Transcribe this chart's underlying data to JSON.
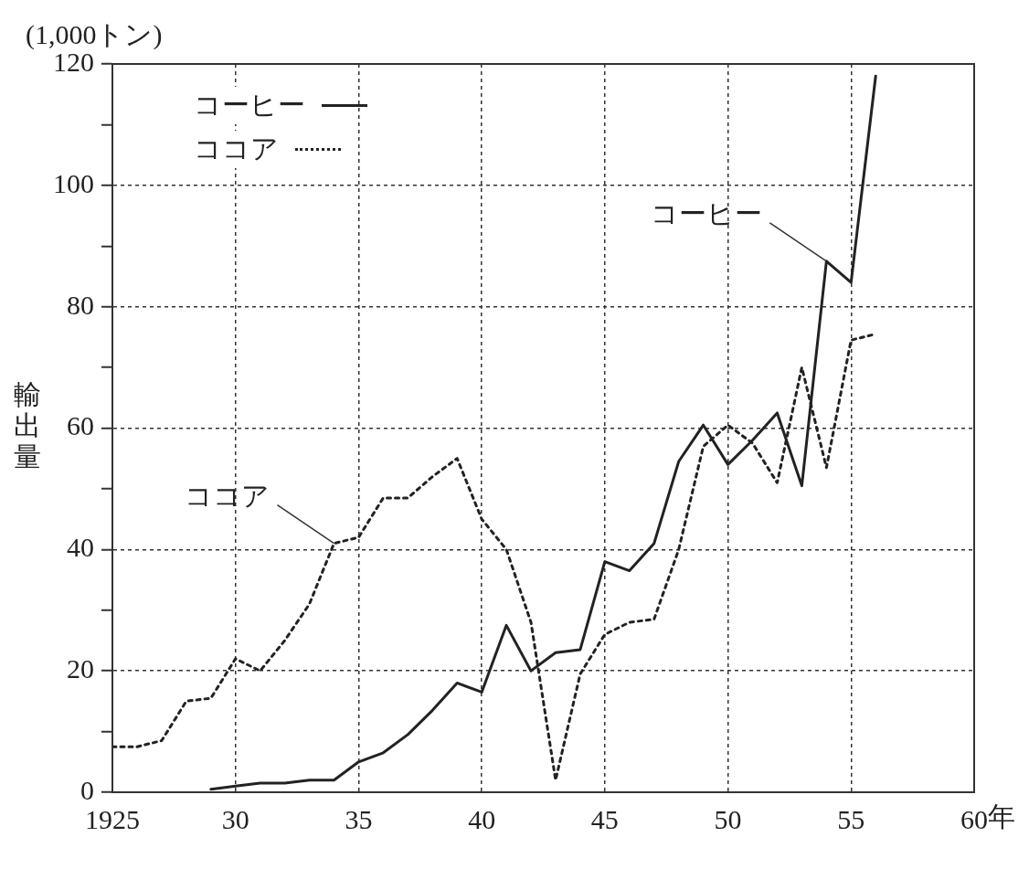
{
  "chart_data": {
    "type": "line",
    "ylabel": "輸出量",
    "annotations": [
      "(1,000トン)",
      {
        "text": "コーヒー",
        "x": 1954,
        "y": 87.5
      },
      {
        "text": "ココア",
        "x": 1934,
        "y": 41
      }
    ],
    "series": [
      {
        "name": "コーヒー",
        "color": "#222222",
        "line_style": "solid",
        "x": [
          1929,
          1930,
          1931,
          1932,
          1933,
          1934,
          1935,
          1936,
          1937,
          1938,
          1939,
          1940,
          1941,
          1942,
          1943,
          1944,
          1945,
          1946,
          1947,
          1948,
          1949,
          1950,
          1951,
          1952,
          1953,
          1954,
          1955,
          1956
        ],
        "values": [
          0.5,
          1,
          1.5,
          1.5,
          2,
          2,
          5,
          6.5,
          9.5,
          13.5,
          18,
          16.5,
          27.5,
          20,
          23,
          23.5,
          38,
          36.5,
          41,
          54.5,
          60.5,
          54,
          58,
          62.5,
          50.5,
          87.5,
          84,
          118
        ]
      },
      {
        "name": "ココア",
        "color": "#222222",
        "line_style": "dotted",
        "x": [
          1925,
          1926,
          1927,
          1928,
          1929,
          1930,
          1931,
          1932,
          1933,
          1934,
          1935,
          1936,
          1937,
          1938,
          1939,
          1940,
          1941,
          1942,
          1943,
          1944,
          1945,
          1946,
          1947,
          1948,
          1949,
          1950,
          1951,
          1952,
          1953,
          1954,
          1955,
          1956
        ],
        "values": [
          7.5,
          7.5,
          8.5,
          15,
          15.5,
          22,
          20,
          25,
          31,
          41,
          42,
          48.5,
          48.5,
          52,
          55,
          45,
          40,
          28,
          2,
          19.5,
          26,
          28,
          28.5,
          40,
          57,
          60.5,
          57.5,
          51,
          70,
          53.5,
          74.5,
          75.5
        ]
      }
    ],
    "xlim": [
      1925,
      1960
    ],
    "xticks": [
      {
        "value": 1925,
        "label": "1925"
      },
      {
        "value": 1930,
        "label": "30"
      },
      {
        "value": 1935,
        "label": "35"
      },
      {
        "value": 1940,
        "label": "40"
      },
      {
        "value": 1945,
        "label": "45"
      },
      {
        "value": 1950,
        "label": "50"
      },
      {
        "value": 1955,
        "label": "55"
      },
      {
        "value": 1960,
        "label": "60"
      }
    ],
    "xlabel": "年",
    "ylim": [
      0,
      120
    ],
    "yticks": [
      0,
      {
        "value": 10,
        "label": null
      },
      20,
      {
        "value": 30,
        "label": null
      },
      40,
      {
        "value": 50,
        "label": null
      },
      60,
      {
        "value": 70,
        "label": null
      },
      80,
      {
        "value": 90,
        "label": null
      },
      100,
      {
        "value": 110,
        "label": null
      },
      120
    ],
    "grid": true,
    "legend": "top left",
    "marker": "none"
  }
}
